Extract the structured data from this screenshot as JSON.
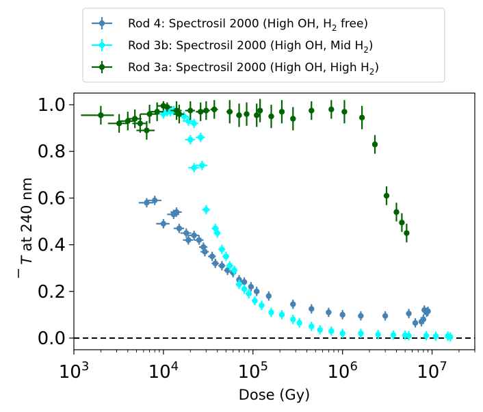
{
  "chart_data": {
    "type": "scatter",
    "xlabel": "Dose (Gy)",
    "ylabel": "T at 240 nm",
    "ylabel_overline": "T",
    "ylabel_rest": " at 240 nm",
    "x_scale": "log",
    "xlim": [
      1000,
      30000000
    ],
    "ylim": [
      -0.05,
      1.05
    ],
    "x_ticks": [
      {
        "value": 1000,
        "base": "10",
        "exp": "3"
      },
      {
        "value": 10000,
        "base": "10",
        "exp": "4"
      },
      {
        "value": 100000,
        "base": "10",
        "exp": "5"
      },
      {
        "value": 1000000,
        "base": "10",
        "exp": "6"
      },
      {
        "value": 10000000,
        "base": "10",
        "exp": "7"
      }
    ],
    "y_ticks": [
      {
        "value": 0.0,
        "label": "0.0"
      },
      {
        "value": 0.2,
        "label": "0.2"
      },
      {
        "value": 0.4,
        "label": "0.4"
      },
      {
        "value": 0.6,
        "label": "0.6"
      },
      {
        "value": 0.8,
        "label": "0.8"
      },
      {
        "value": 1.0,
        "label": "1.0"
      }
    ],
    "reference_line": {
      "y": 0.0,
      "style": "dashed",
      "color": "#000000"
    },
    "grid": false,
    "legend_position": "top-center",
    "series": [
      {
        "name": "Rod 4: Spectrosil 2000 (High OH, H2 free)",
        "legend_text": "Rod 4: Spectrosil 2000 (High OH, H",
        "legend_sub": "2",
        "legend_tail": " free)",
        "color": "#4682b4",
        "points": [
          [
            6500,
            0.58,
            1200,
            0.02
          ],
          [
            8000,
            0.59,
            1500,
            0.02
          ],
          [
            10000,
            0.49,
            1700,
            0.02
          ],
          [
            13000,
            0.53,
            2000,
            0.02
          ],
          [
            14000,
            0.54,
            2000,
            0.02
          ],
          [
            15000,
            0.47,
            2000,
            0.02
          ],
          [
            18000,
            0.45,
            2500,
            0.02
          ],
          [
            19000,
            0.42,
            2500,
            0.02
          ],
          [
            22000,
            0.44,
            3000,
            0.02
          ],
          [
            25000,
            0.42,
            3000,
            0.02
          ],
          [
            28000,
            0.39,
            3000,
            0.02
          ],
          [
            29000,
            0.37,
            3000,
            0.02
          ],
          [
            35000,
            0.35,
            3500,
            0.02
          ],
          [
            38000,
            0.32,
            3500,
            0.02
          ],
          [
            45000,
            0.31,
            4000,
            0.02
          ],
          [
            52000,
            0.29,
            4500,
            0.02
          ],
          [
            60000,
            0.28,
            5000,
            0.02
          ],
          [
            70000,
            0.25,
            5000,
            0.02
          ],
          [
            80000,
            0.24,
            6000,
            0.02
          ],
          [
            95000,
            0.22,
            6000,
            0.02
          ],
          [
            110000,
            0.2,
            8000,
            0.02
          ],
          [
            150000,
            0.18,
            8000,
            0.02
          ],
          [
            280000,
            0.145,
            15000,
            0.02
          ],
          [
            450000,
            0.125,
            20000,
            0.02
          ],
          [
            700000,
            0.11,
            30000,
            0.02
          ],
          [
            1000000,
            0.1,
            40000,
            0.02
          ],
          [
            1600000,
            0.095,
            60000,
            0.02
          ],
          [
            3000000,
            0.095,
            100000,
            0.02
          ],
          [
            5500000,
            0.105,
            150000,
            0.02
          ],
          [
            6500000,
            0.065,
            150000,
            0.02
          ],
          [
            7600000,
            0.07,
            150000,
            0.02
          ],
          [
            8000000,
            0.08,
            150000,
            0.02
          ],
          [
            8200000,
            0.12,
            150000,
            0.02
          ],
          [
            8700000,
            0.11,
            150000,
            0.02
          ],
          [
            9000000,
            0.115,
            150000,
            0.02
          ]
        ]
      },
      {
        "name": "Rod 3b: Spectrosil 2000 (High OH, Mid H2)",
        "legend_text": "Rod 3b: Spectrosil 2000 (High OH, Mid H",
        "legend_sub": "2",
        "legend_tail": ")",
        "color": "#00ffff",
        "points": [
          [
            10000,
            0.96,
            1500,
            0.02
          ],
          [
            11000,
            0.97,
            1500,
            0.02
          ],
          [
            12000,
            0.97,
            1500,
            0.02
          ],
          [
            13000,
            0.975,
            1500,
            0.02
          ],
          [
            15000,
            0.96,
            2000,
            0.02
          ],
          [
            17000,
            0.95,
            2000,
            0.02
          ],
          [
            19000,
            0.93,
            2500,
            0.02
          ],
          [
            20000,
            0.85,
            2500,
            0.02
          ],
          [
            22000,
            0.92,
            2500,
            0.02
          ],
          [
            22000,
            0.73,
            3000,
            0.02
          ],
          [
            26000,
            0.86,
            3000,
            0.02
          ],
          [
            27000,
            0.74,
            4000,
            0.02
          ],
          [
            30000,
            0.55,
            3000,
            0.02
          ],
          [
            38000,
            0.47,
            3500,
            0.02
          ],
          [
            40000,
            0.45,
            3500,
            0.02
          ],
          [
            45000,
            0.38,
            4000,
            0.02
          ],
          [
            50000,
            0.35,
            4500,
            0.02
          ],
          [
            55000,
            0.31,
            5000,
            0.02
          ],
          [
            62000,
            0.29,
            5000,
            0.02
          ],
          [
            70000,
            0.23,
            6000,
            0.02
          ],
          [
            80000,
            0.21,
            6000,
            0.02
          ],
          [
            90000,
            0.19,
            7000,
            0.02
          ],
          [
            105000,
            0.16,
            8000,
            0.02
          ],
          [
            125000,
            0.14,
            9000,
            0.02
          ],
          [
            160000,
            0.11,
            10000,
            0.02
          ],
          [
            210000,
            0.1,
            10000,
            0.02
          ],
          [
            280000,
            0.08,
            15000,
            0.02
          ],
          [
            330000,
            0.065,
            15000,
            0.02
          ],
          [
            450000,
            0.05,
            20000,
            0.02
          ],
          [
            560000,
            0.035,
            30000,
            0.02
          ],
          [
            750000,
            0.03,
            40000,
            0.02
          ],
          [
            1000000,
            0.02,
            50000,
            0.02
          ],
          [
            1600000,
            0.02,
            60000,
            0.02
          ],
          [
            2500000,
            0.015,
            100000,
            0.02
          ],
          [
            3700000,
            0.013,
            150000,
            0.02
          ],
          [
            5000000,
            0.012,
            200000,
            0.02
          ],
          [
            5500000,
            0.01,
            200000,
            0.02
          ],
          [
            8600000,
            0.01,
            300000,
            0.02
          ],
          [
            11000000,
            0.008,
            400000,
            0.02
          ],
          [
            15000000,
            0.008,
            600000,
            0.02
          ],
          [
            16000000,
            0.005,
            600000,
            0.02
          ]
        ]
      },
      {
        "name": "Rod 3a: Spectrosil 2000 (High OH, High H2)",
        "legend_text": "Rod 3a: Spectrosil 2000 (High OH, High H",
        "legend_sub": "2",
        "legend_tail": ")",
        "color": "#006400",
        "points": [
          [
            2000,
            0.955,
            800,
            0.04
          ],
          [
            3200,
            0.92,
            800,
            0.04
          ],
          [
            4000,
            0.93,
            800,
            0.04
          ],
          [
            4800,
            0.94,
            900,
            0.04
          ],
          [
            5500,
            0.92,
            1000,
            0.04
          ],
          [
            6500,
            0.89,
            1500,
            0.04
          ],
          [
            7000,
            0.96,
            1500,
            0.04
          ],
          [
            8500,
            0.97,
            1500,
            0.04
          ],
          [
            10000,
            0.995,
            1500,
            0.02
          ],
          [
            11000,
            0.99,
            1500,
            0.02
          ],
          [
            14000,
            0.975,
            2000,
            0.04
          ],
          [
            15000,
            0.96,
            2000,
            0.04
          ],
          [
            20000,
            0.975,
            2500,
            0.04
          ],
          [
            26000,
            0.97,
            3000,
            0.04
          ],
          [
            30000,
            0.975,
            3000,
            0.04
          ],
          [
            37000,
            0.98,
            3500,
            0.04
          ],
          [
            55000,
            0.97,
            4500,
            0.05
          ],
          [
            70000,
            0.955,
            5000,
            0.05
          ],
          [
            85000,
            0.96,
            6000,
            0.05
          ],
          [
            110000,
            0.955,
            7000,
            0.05
          ],
          [
            120000,
            0.975,
            8000,
            0.05
          ],
          [
            160000,
            0.95,
            10000,
            0.05
          ],
          [
            210000,
            0.97,
            12000,
            0.05
          ],
          [
            280000,
            0.94,
            15000,
            0.05
          ],
          [
            450000,
            0.975,
            20000,
            0.04
          ],
          [
            750000,
            0.98,
            30000,
            0.04
          ],
          [
            1050000,
            0.97,
            40000,
            0.05
          ],
          [
            1650000,
            0.945,
            60000,
            0.05
          ],
          [
            2300000,
            0.83,
            100000,
            0.04
          ],
          [
            3100000,
            0.61,
            100000,
            0.04
          ],
          [
            4000000,
            0.54,
            150000,
            0.04
          ],
          [
            4600000,
            0.495,
            150000,
            0.04
          ],
          [
            5200000,
            0.45,
            200000,
            0.04
          ]
        ]
      }
    ]
  }
}
